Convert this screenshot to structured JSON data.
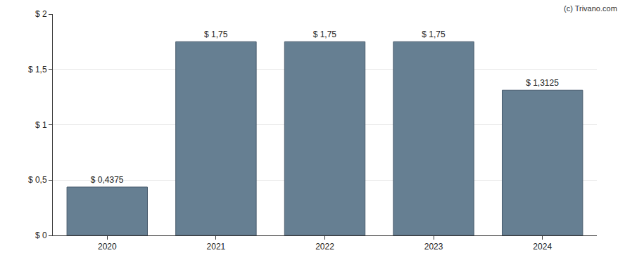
{
  "chart_data": {
    "type": "bar",
    "categories": [
      "2020",
      "2021",
      "2022",
      "2023",
      "2024"
    ],
    "values": [
      0.4375,
      1.75,
      1.75,
      1.75,
      1.3125
    ],
    "value_labels": [
      "$ 0,4375",
      "$ 1,75",
      "$ 1,75",
      "$ 1,75",
      "$ 1,3125"
    ],
    "data_labels": true,
    "color": "#667f92",
    "ylim": [
      0,
      2
    ],
    "yticks": [
      {
        "value": 0,
        "label": "$ 0"
      },
      {
        "value": 0.5,
        "label": "$ 0,5"
      },
      {
        "value": 1,
        "label": "$ 1"
      },
      {
        "value": 1.5,
        "label": "$ 1,5"
      },
      {
        "value": 2,
        "label": "$ 2"
      }
    ],
    "grid": true,
    "annotations": [
      "(c) Trivano.com"
    ]
  }
}
